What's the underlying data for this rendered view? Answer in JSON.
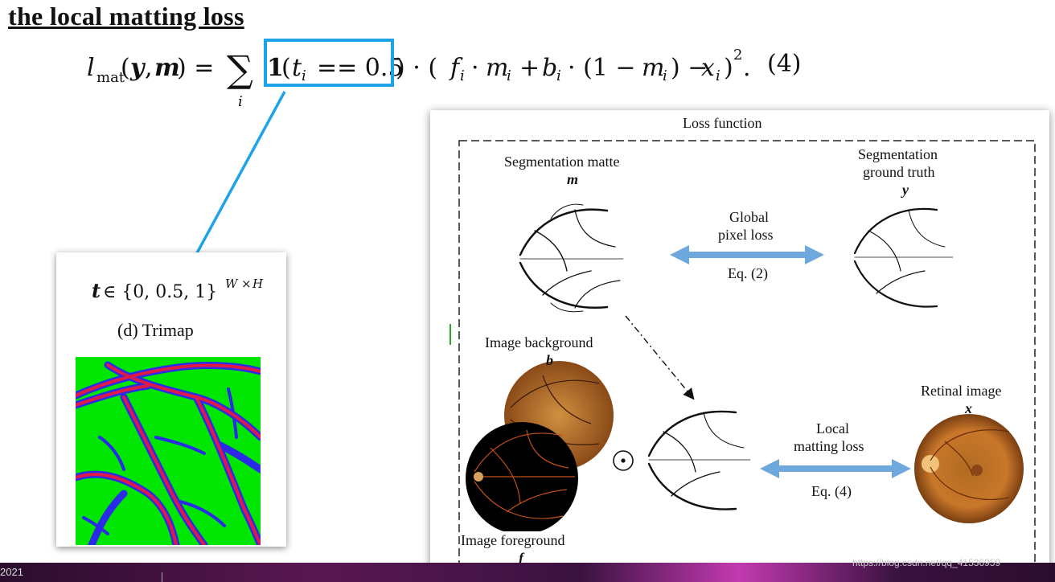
{
  "slide": {
    "title": "the local matting loss",
    "equation_number": "(4)"
  },
  "trimap": {
    "caption": "(d) Trimap"
  },
  "loss_diagram": {
    "title": "Loss function",
    "segmentation_matte": {
      "label": "Segmentation matte",
      "symbol": "m"
    },
    "segmentation_ground_truth": {
      "label_line1": "Segmentation",
      "label_line2": "ground truth",
      "symbol": "y"
    },
    "global_loss": {
      "label_line1": "Global",
      "label_line2": "pixel loss",
      "equation": "Eq. (2)"
    },
    "image_background": {
      "label": "Image background",
      "symbol": "b"
    },
    "image_foreground": {
      "label": "Image foreground",
      "symbol": "f"
    },
    "retinal_image": {
      "label": "Retinal image",
      "symbol": "x"
    },
    "local_loss": {
      "label_line1": "Local",
      "label_line2": "matting loss",
      "equation": "Eq. (4)"
    },
    "hadamard_operator": "⊙"
  },
  "taskbar": {
    "text": "2021"
  },
  "watermark": "https://blog.csdn.net/qq_41536959",
  "colors": {
    "highlight": "#1fa3e8",
    "trimap_green": "#00e600",
    "trimap_blue": "#2a2ae8",
    "trimap_red": "#e0184a",
    "arrow_blue": "#6fa8dc"
  }
}
